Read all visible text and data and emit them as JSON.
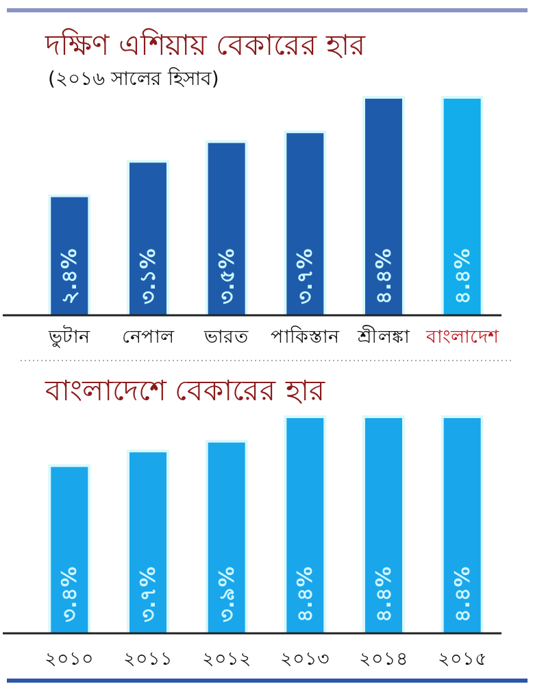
{
  "chart_data": [
    {
      "type": "bar",
      "title": "দক্ষিণ এশিয়ায় বেকারের হার",
      "subtitle": "(২০১৬ সালের হিসাব)",
      "categories": [
        "ভুটান",
        "নেপাল",
        "ভারত",
        "পাকিস্তান",
        "শ্রীলঙ্কা",
        "বাংলাদেশ"
      ],
      "values": [
        2.4,
        3.1,
        3.5,
        3.7,
        4.4,
        4.4
      ],
      "colors": [
        "#1e5cab",
        "#1e5cab",
        "#1e5cab",
        "#1e5cab",
        "#1e5cab",
        "#12adea"
      ],
      "value_labels": [
        "২.৪%",
        "৩.১%",
        "৩.৫%",
        "৩.৭%",
        "৪.৪%",
        "৪.৪%"
      ]
    },
    {
      "type": "bar",
      "title": "বাংলাদেশে বেকারের হার",
      "categories": [
        "২০১০",
        "২০১১",
        "২০১২",
        "২০১৩",
        "২০১৪",
        "২০১৫"
      ],
      "values": [
        3.4,
        3.7,
        3.9,
        4.4,
        4.4,
        4.4
      ],
      "colors": [
        "#1aa6ea",
        "#1aa6ea",
        "#1aa6ea",
        "#1aa6ea",
        "#1aa6ea",
        "#1aa6ea"
      ],
      "value_labels": [
        "৩.৪%",
        "৩.৭%",
        "৩.৯%",
        "৪.৪%",
        "৪.৪%",
        "৪.৪%"
      ]
    }
  ]
}
